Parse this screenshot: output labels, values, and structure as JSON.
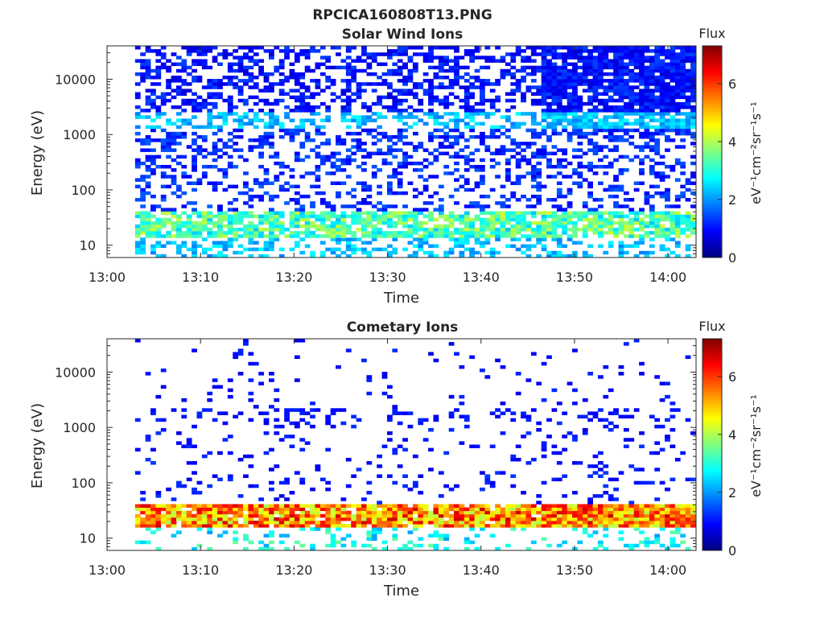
{
  "figure": {
    "title": "RPCICA160808T13.PNG",
    "colorscale": [
      "#00007f",
      "#0000ff",
      "#007fff",
      "#00ffff",
      "#7fff7f",
      "#ffff00",
      "#ff7f00",
      "#ff0000",
      "#7f0000"
    ]
  },
  "chart_data": [
    {
      "type": "heatmap",
      "title": "Solar Wind Ions",
      "xlabel": "Time",
      "ylabel": "Energy (eV)",
      "x_range": [
        "13:00",
        "14:03"
      ],
      "x_ticks": [
        "13:00",
        "13:10",
        "13:20",
        "13:30",
        "13:40",
        "13:50",
        "14:00"
      ],
      "y_scale": "log",
      "y_range": [
        6,
        40000
      ],
      "y_ticks": [
        10,
        100,
        1000,
        10000
      ],
      "y_tick_labels": [
        "10",
        "100",
        "1000",
        "10000"
      ],
      "colorbar": {
        "label": "Flux",
        "units_label": "eV⁻¹cm⁻²sr⁻¹s⁻¹",
        "range": [
          0,
          7.3
        ],
        "ticks": [
          0,
          2,
          4,
          6
        ],
        "tick_labels": [
          "0",
          "2",
          "4",
          "6"
        ]
      },
      "bands": [
        {
          "energy_min": 6,
          "energy_max": 14,
          "flux_min": 1.8,
          "flux_max": 2.8,
          "coverage": 0.35
        },
        {
          "energy_min": 14,
          "energy_max": 40,
          "flux_min": 2.3,
          "flux_max": 4.2,
          "coverage": 0.8
        },
        {
          "energy_min": 40,
          "energy_max": 300,
          "flux_min": 0.8,
          "flux_max": 1.6,
          "coverage": 0.3
        },
        {
          "energy_min": 300,
          "energy_max": 1200,
          "flux_min": 0.8,
          "flux_max": 1.6,
          "coverage": 0.35
        },
        {
          "energy_min": 1200,
          "energy_max": 2600,
          "flux_min": 1.8,
          "flux_max": 2.8,
          "coverage": 0.45
        },
        {
          "energy_min": 2600,
          "energy_max": 40000,
          "flux_min": 0.6,
          "flux_max": 1.4,
          "coverage": 0.45
        }
      ]
    },
    {
      "type": "heatmap",
      "title": "Cometary Ions",
      "xlabel": "Time",
      "ylabel": "Energy (eV)",
      "x_range": [
        "13:00",
        "14:03"
      ],
      "x_ticks": [
        "13:00",
        "13:10",
        "13:20",
        "13:30",
        "13:40",
        "13:50",
        "14:00"
      ],
      "y_scale": "log",
      "y_range": [
        6,
        40000
      ],
      "y_ticks": [
        10,
        100,
        1000,
        10000
      ],
      "y_tick_labels": [
        "10",
        "100",
        "1000",
        "10000"
      ],
      "colorbar": {
        "label": "Flux",
        "units_label": "eV⁻¹cm⁻²sr⁻¹s⁻¹",
        "range": [
          0,
          7.3
        ],
        "ticks": [
          0,
          2,
          4,
          6
        ],
        "tick_labels": [
          "0",
          "2",
          "4",
          "6"
        ]
      },
      "bands": [
        {
          "energy_min": 6,
          "energy_max": 16,
          "flux_min": 2.0,
          "flux_max": 3.5,
          "coverage": 0.25
        },
        {
          "energy_min": 16,
          "energy_max": 40,
          "flux_min": 4.0,
          "flux_max": 6.8,
          "coverage": 0.9
        },
        {
          "energy_min": 40,
          "energy_max": 1200,
          "flux_min": 0.7,
          "flux_max": 1.3,
          "coverage": 0.1
        },
        {
          "energy_min": 1200,
          "energy_max": 2200,
          "flux_min": 0.8,
          "flux_max": 1.2,
          "coverage": 0.25
        },
        {
          "energy_min": 2200,
          "energy_max": 40000,
          "flux_min": 0.7,
          "flux_max": 1.2,
          "coverage": 0.04
        }
      ]
    }
  ]
}
